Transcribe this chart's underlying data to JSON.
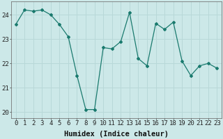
{
  "x": [
    0,
    1,
    2,
    3,
    4,
    5,
    6,
    7,
    8,
    9,
    10,
    11,
    12,
    13,
    14,
    15,
    16,
    17,
    18,
    19,
    20,
    21,
    22,
    23
  ],
  "y": [
    23.6,
    24.2,
    24.15,
    24.2,
    24.0,
    23.6,
    23.1,
    21.5,
    20.1,
    20.1,
    22.65,
    22.6,
    22.9,
    24.1,
    22.2,
    21.9,
    23.65,
    23.4,
    23.7,
    22.1,
    21.5,
    21.9,
    22.0,
    21.8
  ],
  "line_color": "#1a7a6e",
  "bg_color": "#cce8e8",
  "grid_color": "#b8d8d8",
  "xlabel": "Humidex (Indice chaleur)",
  "ylim": [
    19.75,
    24.55
  ],
  "xlim": [
    -0.5,
    23.5
  ],
  "yticks": [
    20,
    21,
    22,
    23,
    24
  ],
  "xticks": [
    0,
    1,
    2,
    3,
    4,
    5,
    6,
    7,
    8,
    9,
    10,
    11,
    12,
    13,
    14,
    15,
    16,
    17,
    18,
    19,
    20,
    21,
    22,
    23
  ],
  "tick_fontsize": 6.5,
  "label_fontsize": 7.5
}
